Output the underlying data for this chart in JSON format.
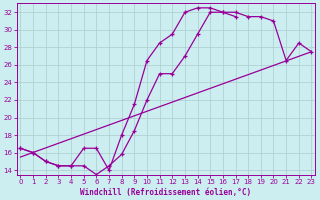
{
  "xlabel": "Windchill (Refroidissement éolien,°C)",
  "bg_color": "#cceef0",
  "grid_color": "#aacccc",
  "line_color": "#990099",
  "ylim": [
    13.5,
    33.0
  ],
  "xlim": [
    -0.3,
    23.3
  ],
  "yticks": [
    14,
    16,
    18,
    20,
    22,
    24,
    26,
    28,
    30,
    32
  ],
  "xticks": [
    0,
    1,
    2,
    3,
    4,
    5,
    6,
    7,
    8,
    9,
    10,
    11,
    12,
    13,
    14,
    15,
    16,
    17,
    18,
    19,
    20,
    21,
    22,
    23
  ],
  "line1_x": [
    0,
    1,
    2,
    3,
    4,
    5,
    6,
    7,
    8,
    9,
    10,
    11,
    12,
    13,
    14,
    15,
    16,
    17,
    18,
    19,
    20,
    21,
    22,
    23
  ],
  "line1_y": [
    16.5,
    16.0,
    15.0,
    14.5,
    14.5,
    14.5,
    13.5,
    14.5,
    15.8,
    18.5,
    22.0,
    25.0,
    25.0,
    27.0,
    29.5,
    32.0,
    32.0,
    32.0,
    31.5,
    31.5,
    31.0,
    26.5,
    28.5,
    27.5
  ],
  "line2_x": [
    0,
    1,
    2,
    3,
    4,
    5,
    6,
    7,
    8,
    9,
    10,
    11,
    12,
    13,
    14,
    15,
    16,
    17
  ],
  "line2_y": [
    16.5,
    16.0,
    15.0,
    14.5,
    14.5,
    16.5,
    16.5,
    14.0,
    18.0,
    21.5,
    26.5,
    28.5,
    29.5,
    32.0,
    32.5,
    32.5,
    32.0,
    31.5
  ],
  "line3_x": [
    0,
    23
  ],
  "line3_y": [
    15.5,
    27.5
  ]
}
